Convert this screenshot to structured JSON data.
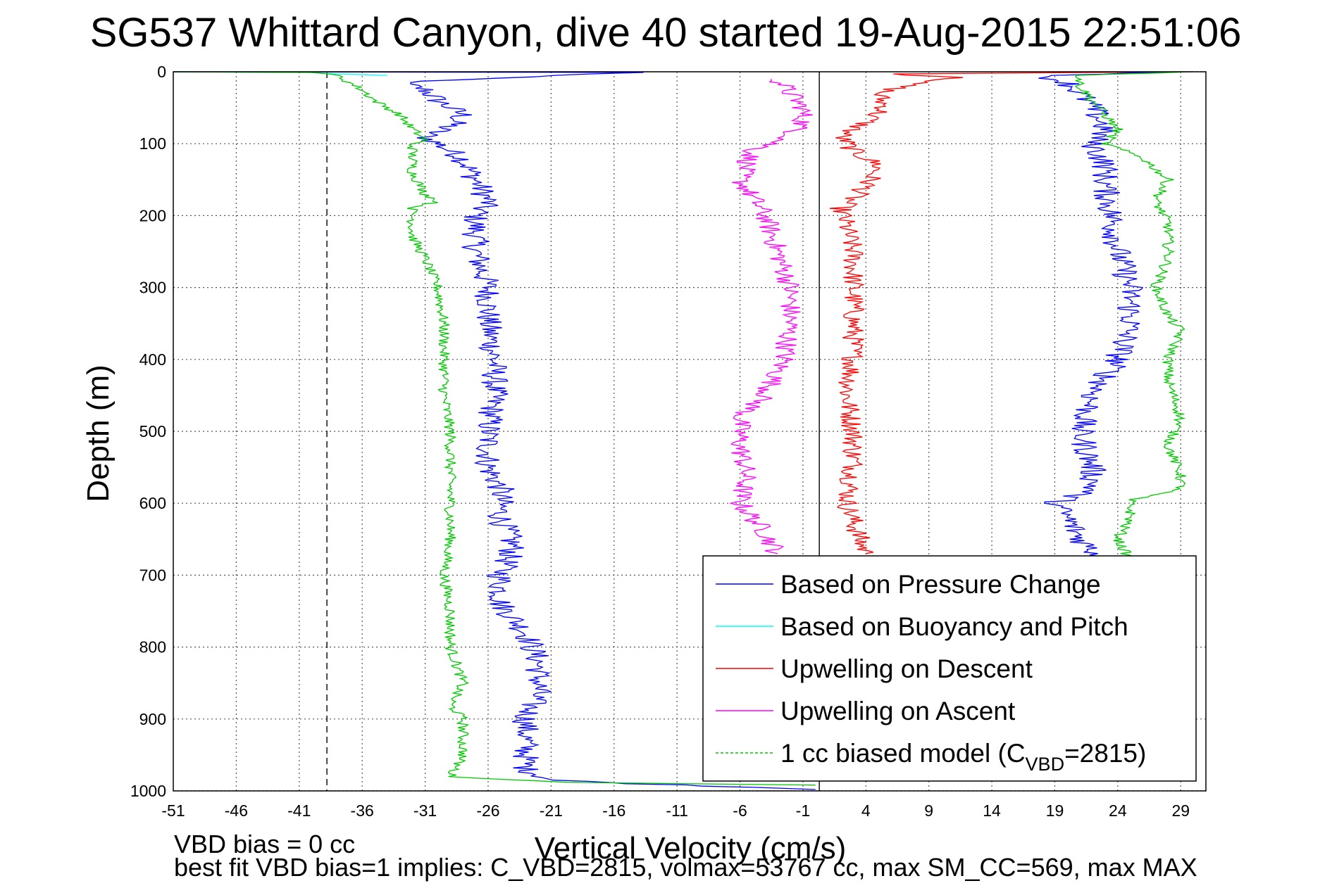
{
  "chart_data": {
    "type": "line",
    "title": "SG537 Whittard Canyon, dive 40 started 19-Aug-2015 22:51:06",
    "xlabel": "Vertical Velocity (cm/s)",
    "ylabel": "Depth (m)",
    "xlim": [
      -51,
      31
    ],
    "ylim": [
      0,
      1000
    ],
    "y_reversed": true,
    "grid": true,
    "x_ticks": [
      -51,
      -46,
      -41,
      -36,
      -31,
      -26,
      -21,
      -16,
      -11,
      -6,
      -1,
      4,
      9,
      14,
      19,
      24,
      29
    ],
    "y_ticks": [
      0,
      100,
      200,
      300,
      400,
      500,
      600,
      700,
      800,
      900,
      1000
    ],
    "legend_position": "bottom-right",
    "notes": [
      "VBD bias = 0 cc",
      "best fit VBD bias=1 implies: C_VBD=2815, volmax=53767 cc, max SM_CC=569, max MAX"
    ],
    "reference_lines": [
      {
        "x": -38.8,
        "style": "dashed",
        "color": "#000000"
      },
      {
        "x": 0.3,
        "style": "solid",
        "color": "#000000"
      }
    ],
    "series": [
      {
        "name": "Based on Pressure Change",
        "color": "#0000ff",
        "points": [
          [
            -51,
            0
          ],
          [
            -14,
            1
          ],
          [
            -21,
            5
          ],
          [
            -33,
            15
          ],
          [
            -31,
            25
          ],
          [
            -30,
            40
          ],
          [
            -28,
            60
          ],
          [
            -29,
            75
          ],
          [
            -31,
            90
          ],
          [
            -30,
            100
          ],
          [
            -28,
            120
          ],
          [
            -27,
            150
          ],
          [
            -26,
            180
          ],
          [
            -27,
            200
          ],
          [
            -27,
            250
          ],
          [
            -26,
            300
          ],
          [
            -26,
            350
          ],
          [
            -25.5,
            400
          ],
          [
            -25.5,
            450
          ],
          [
            -26,
            500
          ],
          [
            -26,
            550
          ],
          [
            -25,
            580
          ],
          [
            -25,
            620
          ],
          [
            -24,
            660
          ],
          [
            -25,
            700
          ],
          [
            -25,
            740
          ],
          [
            -23,
            780
          ],
          [
            -22,
            820
          ],
          [
            -22,
            860
          ],
          [
            -23,
            900
          ],
          [
            -23,
            940
          ],
          [
            -23,
            970
          ],
          [
            -21,
            985
          ],
          [
            -14,
            990
          ],
          [
            -5,
            995
          ],
          [
            0,
            998
          ]
        ]
      },
      {
        "name": "Based on Buoyancy and Pitch",
        "color": "#00ffff",
        "points": [
          [
            -51,
            0
          ],
          [
            -40,
            1
          ],
          [
            -38,
            3
          ],
          [
            -34,
            5
          ]
        ]
      },
      {
        "name": "Upwelling on Descent",
        "color": "#ff0000",
        "points": [
          [
            30,
            0
          ],
          [
            6,
            3
          ],
          [
            12,
            8
          ],
          [
            8,
            15
          ],
          [
            5,
            30
          ],
          [
            5.5,
            50
          ],
          [
            4,
            70
          ],
          [
            2,
            90
          ],
          [
            3,
            110
          ],
          [
            5,
            130
          ],
          [
            4,
            160
          ],
          [
            2,
            190
          ],
          [
            3,
            250
          ],
          [
            3,
            300
          ],
          [
            3,
            350
          ],
          [
            3,
            400
          ],
          [
            2.5,
            450
          ],
          [
            3,
            500
          ],
          [
            3,
            550
          ],
          [
            2.5,
            600
          ],
          [
            3.5,
            650
          ],
          [
            4,
            670
          ]
        ]
      },
      {
        "name": "Upwelling on Ascent",
        "color": "#ff00ff",
        "points": [
          [
            -3,
            10
          ],
          [
            -2,
            30
          ],
          [
            -1,
            50
          ],
          [
            -1,
            70
          ],
          [
            -2,
            90
          ],
          [
            -5,
            110
          ],
          [
            -6,
            150
          ],
          [
            -4,
            200
          ],
          [
            -3,
            250
          ],
          [
            -2,
            300
          ],
          [
            -2,
            350
          ],
          [
            -2.5,
            400
          ],
          [
            -4,
            450
          ],
          [
            -6,
            480
          ],
          [
            -6,
            520
          ],
          [
            -5.5,
            560
          ],
          [
            -6,
            600
          ],
          [
            -4,
            640
          ],
          [
            -3,
            670
          ]
        ]
      },
      {
        "name": "1 cc biased model (C_VBD=2815)",
        "color": "#00c800",
        "points": [
          [
            -51,
            0
          ],
          [
            -40,
            1
          ],
          [
            -38,
            5
          ],
          [
            -36,
            25
          ],
          [
            -35,
            40
          ],
          [
            -33,
            60
          ],
          [
            -32,
            80
          ],
          [
            -31,
            95
          ],
          [
            -32,
            100
          ],
          [
            -32,
            140
          ],
          [
            -31,
            170
          ],
          [
            -30,
            180
          ],
          [
            -32,
            190
          ],
          [
            -32,
            230
          ],
          [
            -31,
            260
          ],
          [
            -30,
            300
          ],
          [
            -29.5,
            350
          ],
          [
            -29.5,
            400
          ],
          [
            -29.5,
            450
          ],
          [
            -29,
            500
          ],
          [
            -29,
            550
          ],
          [
            -29,
            600
          ],
          [
            -29,
            650
          ],
          [
            -29.5,
            700
          ],
          [
            -29,
            750
          ],
          [
            -29,
            800
          ],
          [
            -28,
            850
          ],
          [
            -29,
            880
          ],
          [
            -28,
            900
          ],
          [
            -28,
            950
          ],
          [
            -29,
            980
          ],
          [
            -20,
            988
          ],
          [
            0,
            992
          ]
        ]
      }
    ],
    "ascent_series": [
      {
        "series": "Based on Pressure Change",
        "color": "#0000ff",
        "points": [
          [
            30,
            0
          ],
          [
            18,
            5
          ],
          [
            20,
            15
          ],
          [
            21,
            30
          ],
          [
            22,
            50
          ],
          [
            23,
            80
          ],
          [
            22,
            100
          ],
          [
            23,
            130
          ],
          [
            23,
            160
          ],
          [
            23.5,
            200
          ],
          [
            24,
            250
          ],
          [
            25,
            300
          ],
          [
            25,
            350
          ],
          [
            24,
            400
          ],
          [
            22,
            450
          ],
          [
            21,
            500
          ],
          [
            22,
            550
          ],
          [
            22,
            580
          ],
          [
            19,
            600
          ],
          [
            20,
            620
          ],
          [
            21,
            650
          ],
          [
            23,
            680
          ]
        ]
      },
      {
        "series": "1 cc biased model (C_VBD=2815)",
        "color": "#00c800",
        "points": [
          [
            30,
            0
          ],
          [
            21,
            5
          ],
          [
            21,
            20
          ],
          [
            22,
            40
          ],
          [
            23,
            60
          ],
          [
            24,
            80
          ],
          [
            23,
            100
          ],
          [
            26,
            120
          ],
          [
            28,
            150
          ],
          [
            27,
            180
          ],
          [
            28,
            210
          ],
          [
            28,
            260
          ],
          [
            27,
            300
          ],
          [
            28,
            340
          ],
          [
            29,
            360
          ],
          [
            28,
            400
          ],
          [
            28,
            430
          ],
          [
            29,
            480
          ],
          [
            28,
            520
          ],
          [
            29,
            560
          ],
          [
            29,
            580
          ],
          [
            25,
            595
          ],
          [
            25,
            620
          ],
          [
            24,
            650
          ],
          [
            25,
            680
          ]
        ]
      }
    ],
    "legend_symbol": {
      "subscript_text": "VBD",
      "prefix": "1 cc biased model (C",
      "suffix": "=2815)"
    }
  }
}
